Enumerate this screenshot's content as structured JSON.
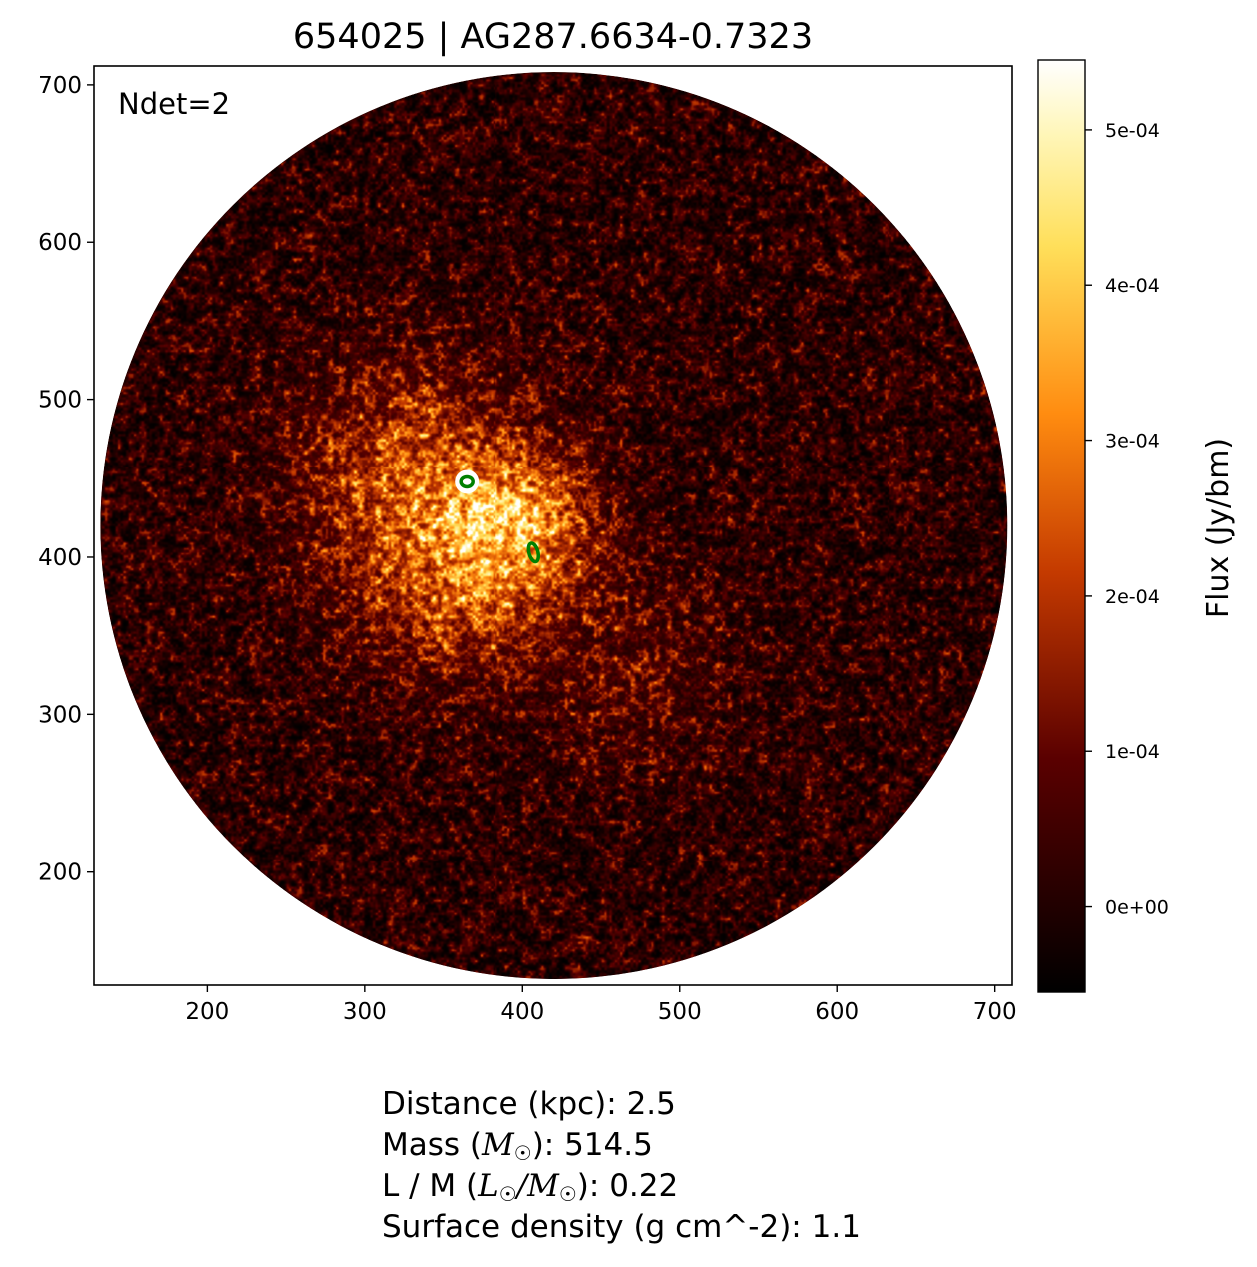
{
  "chart_data": {
    "type": "heatmap",
    "title": "654025 | AG287.6634-0.7323",
    "xlim": [
      128,
      711
    ],
    "ylim": [
      128,
      712
    ],
    "x_ticks": [
      200,
      300,
      400,
      500,
      600,
      700
    ],
    "y_ticks": [
      200,
      300,
      400,
      500,
      600,
      700
    ],
    "x_tick_labels": [
      "200",
      "300",
      "400",
      "500",
      "600",
      "700"
    ],
    "y_tick_labels": [
      "200",
      "300",
      "400",
      "500",
      "600",
      "700"
    ],
    "field_center": [
      420,
      420
    ],
    "field_radius": 288,
    "colormap": "afmhot",
    "colorbar": {
      "label": "Flux (Jy/bm)",
      "vmin": -5.5e-05,
      "vmax": 0.000545,
      "ticks": [
        0,
        0.0001,
        0.0002,
        0.0003,
        0.0004,
        0.0005
      ],
      "tick_labels": [
        "0e+00",
        "1e-04",
        "2e-04",
        "3e-04",
        "4e-04",
        "5e-04"
      ]
    },
    "annotation": "Ndet=2",
    "detections": [
      {
        "x": 365,
        "y": 448,
        "color": "#008000"
      },
      {
        "x": 407,
        "y": 403,
        "color": "#008000"
      }
    ]
  },
  "info": {
    "distance": "Distance (kpc): 2.5",
    "mass_prefix": "Mass (",
    "mass_symbol": "M",
    "mass_suffix": "): 514.5",
    "lm_prefix": "L / M (",
    "lm_l": "L",
    "lm_slash": "/",
    "lm_m": "M",
    "lm_suffix": "): 0.22",
    "sun_symbol": "☉",
    "surface_density": "Surface density (g cm^-2): 1.1"
  }
}
